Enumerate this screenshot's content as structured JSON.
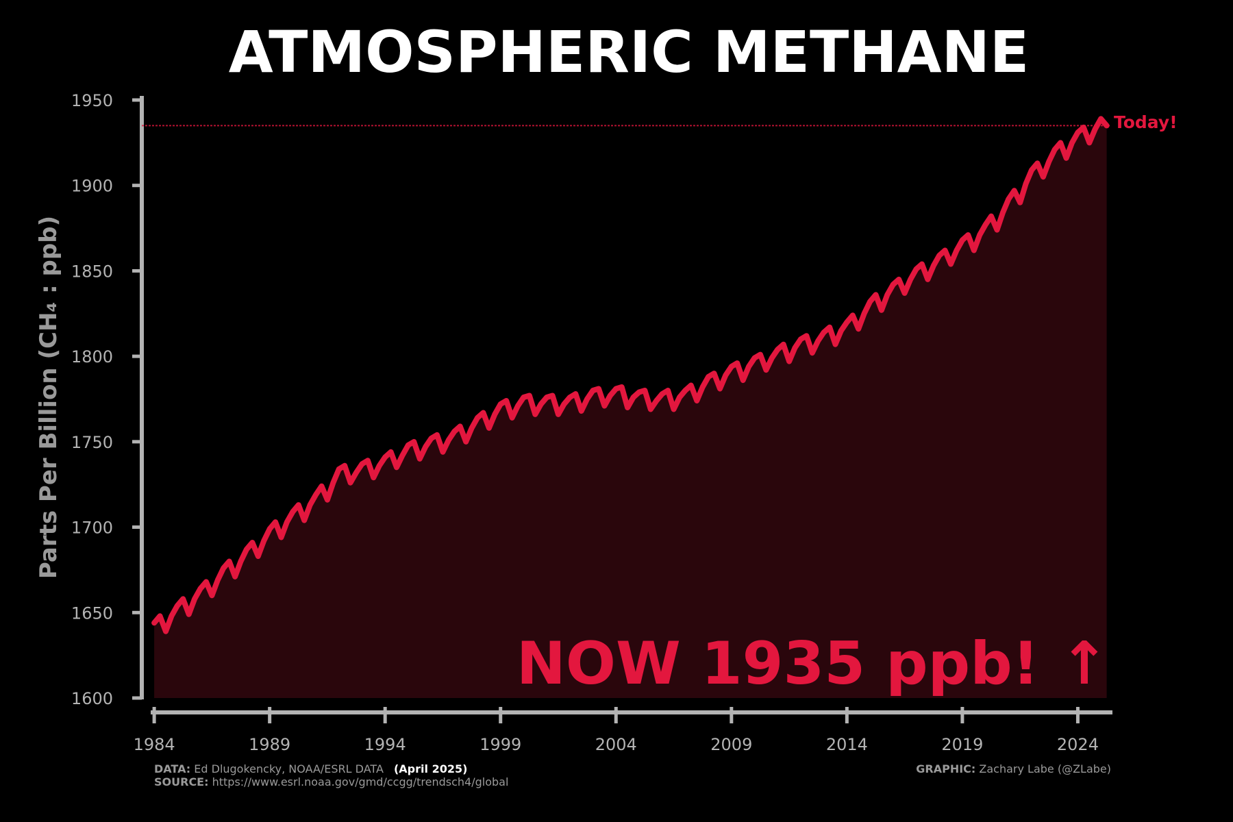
{
  "chart_data": {
    "type": "line",
    "title": "ATMOSPHERIC METHANE",
    "y_label": "Parts Per Billion (CH₄ : ppb)",
    "annotation_today": "Today!",
    "annotation_now": "NOW 1935 ppb! ↑",
    "reference_line": 1935,
    "footer": {
      "data_label": "DATA:",
      "data_text": "Ed Dlugokencky, NOAA/ESRL DATA",
      "data_date": "(April 2025)",
      "source_label": "SOURCE:",
      "source_text": "https://www.esrl.noaa.gov/gmd/ccgg/trendsch4/global",
      "graphic_label": "GRAPHIC:",
      "graphic_text": "Zachary Labe (@ZLabe)"
    },
    "xlim": [
      1983.7,
      2025.5
    ],
    "ylim": [
      1600,
      1950
    ],
    "xticks": [
      1984,
      1989,
      1994,
      1999,
      2004,
      2009,
      2014,
      2019,
      2024
    ],
    "yticks": [
      1600,
      1650,
      1700,
      1750,
      1800,
      1850,
      1900,
      1950
    ],
    "area_color": "#2a060c",
    "x": [
      1984,
      1984.25,
      1984.5,
      1984.75,
      1985,
      1985.25,
      1985.5,
      1985.75,
      1986,
      1986.25,
      1986.5,
      1986.75,
      1987,
      1987.25,
      1987.5,
      1987.75,
      1988,
      1988.25,
      1988.5,
      1988.75,
      1989,
      1989.25,
      1989.5,
      1989.75,
      1990,
      1990.25,
      1990.5,
      1990.75,
      1991,
      1991.25,
      1991.5,
      1991.75,
      1992,
      1992.25,
      1992.5,
      1992.75,
      1993,
      1993.25,
      1993.5,
      1993.75,
      1994,
      1994.25,
      1994.5,
      1994.75,
      1995,
      1995.25,
      1995.5,
      1995.75,
      1996,
      1996.25,
      1996.5,
      1996.75,
      1997,
      1997.25,
      1997.5,
      1997.75,
      1998,
      1998.25,
      1998.5,
      1998.75,
      1999,
      1999.25,
      1999.5,
      1999.75,
      2000,
      2000.25,
      2000.5,
      2000.75,
      2001,
      2001.25,
      2001.5,
      2001.75,
      2002,
      2002.25,
      2002.5,
      2002.75,
      2003,
      2003.25,
      2003.5,
      2003.75,
      2004,
      2004.25,
      2004.5,
      2004.75,
      2005,
      2005.25,
      2005.5,
      2005.75,
      2006,
      2006.25,
      2006.5,
      2006.75,
      2007,
      2007.25,
      2007.5,
      2007.75,
      2008,
      2008.25,
      2008.5,
      2008.75,
      2009,
      2009.25,
      2009.5,
      2009.75,
      2010,
      2010.25,
      2010.5,
      2010.75,
      2011,
      2011.25,
      2011.5,
      2011.75,
      2012,
      2012.25,
      2012.5,
      2012.75,
      2013,
      2013.25,
      2013.5,
      2013.75,
      2014,
      2014.25,
      2014.5,
      2014.75,
      2015,
      2015.25,
      2015.5,
      2015.75,
      2016,
      2016.25,
      2016.5,
      2016.75,
      2017,
      2017.25,
      2017.5,
      2017.75,
      2018,
      2018.25,
      2018.5,
      2018.75,
      2019,
      2019.25,
      2019.5,
      2019.75,
      2020,
      2020.25,
      2020.5,
      2020.75,
      2021,
      2021.25,
      2021.5,
      2021.75,
      2022,
      2022.25,
      2022.5,
      2022.75,
      2023,
      2023.25,
      2023.5,
      2023.75,
      2024,
      2024.25,
      2024.5,
      2024.75,
      2025,
      2025.25
    ],
    "series": [
      {
        "color": "#e3173e",
        "values": [
          1644,
          1648,
          1639,
          1648,
          1654,
          1658,
          1649,
          1658,
          1664,
          1668,
          1660,
          1669,
          1676,
          1680,
          1671,
          1680,
          1687,
          1691,
          1683,
          1692,
          1699,
          1703,
          1694,
          1703,
          1709,
          1713,
          1704,
          1713,
          1719,
          1724,
          1716,
          1726,
          1734,
          1736,
          1726,
          1732,
          1737,
          1739,
          1729,
          1736,
          1741,
          1744,
          1735,
          1742,
          1748,
          1750,
          1740,
          1747,
          1752,
          1754,
          1744,
          1751,
          1756,
          1759,
          1750,
          1758,
          1764,
          1767,
          1758,
          1766,
          1772,
          1774,
          1764,
          1771,
          1776,
          1777,
          1766,
          1772,
          1776,
          1777,
          1766,
          1772,
          1776,
          1778,
          1768,
          1775,
          1780,
          1781,
          1771,
          1777,
          1781,
          1782,
          1770,
          1776,
          1779,
          1780,
          1769,
          1774,
          1778,
          1780,
          1769,
          1776,
          1780,
          1783,
          1774,
          1782,
          1788,
          1790,
          1781,
          1789,
          1794,
          1796,
          1786,
          1794,
          1799,
          1801,
          1792,
          1799,
          1804,
          1807,
          1797,
          1805,
          1810,
          1812,
          1802,
          1809,
          1814,
          1817,
          1807,
          1815,
          1820,
          1824,
          1816,
          1825,
          1832,
          1836,
          1827,
          1836,
          1842,
          1845,
          1837,
          1845,
          1851,
          1854,
          1845,
          1853,
          1859,
          1862,
          1854,
          1862,
          1868,
          1871,
          1862,
          1871,
          1877,
          1882,
          1874,
          1884,
          1892,
          1897,
          1890,
          1901,
          1909,
          1913,
          1905,
          1914,
          1921,
          1925,
          1916,
          1925,
          1931,
          1934,
          1925,
          1933,
          1939,
          1935
        ]
      }
    ]
  }
}
